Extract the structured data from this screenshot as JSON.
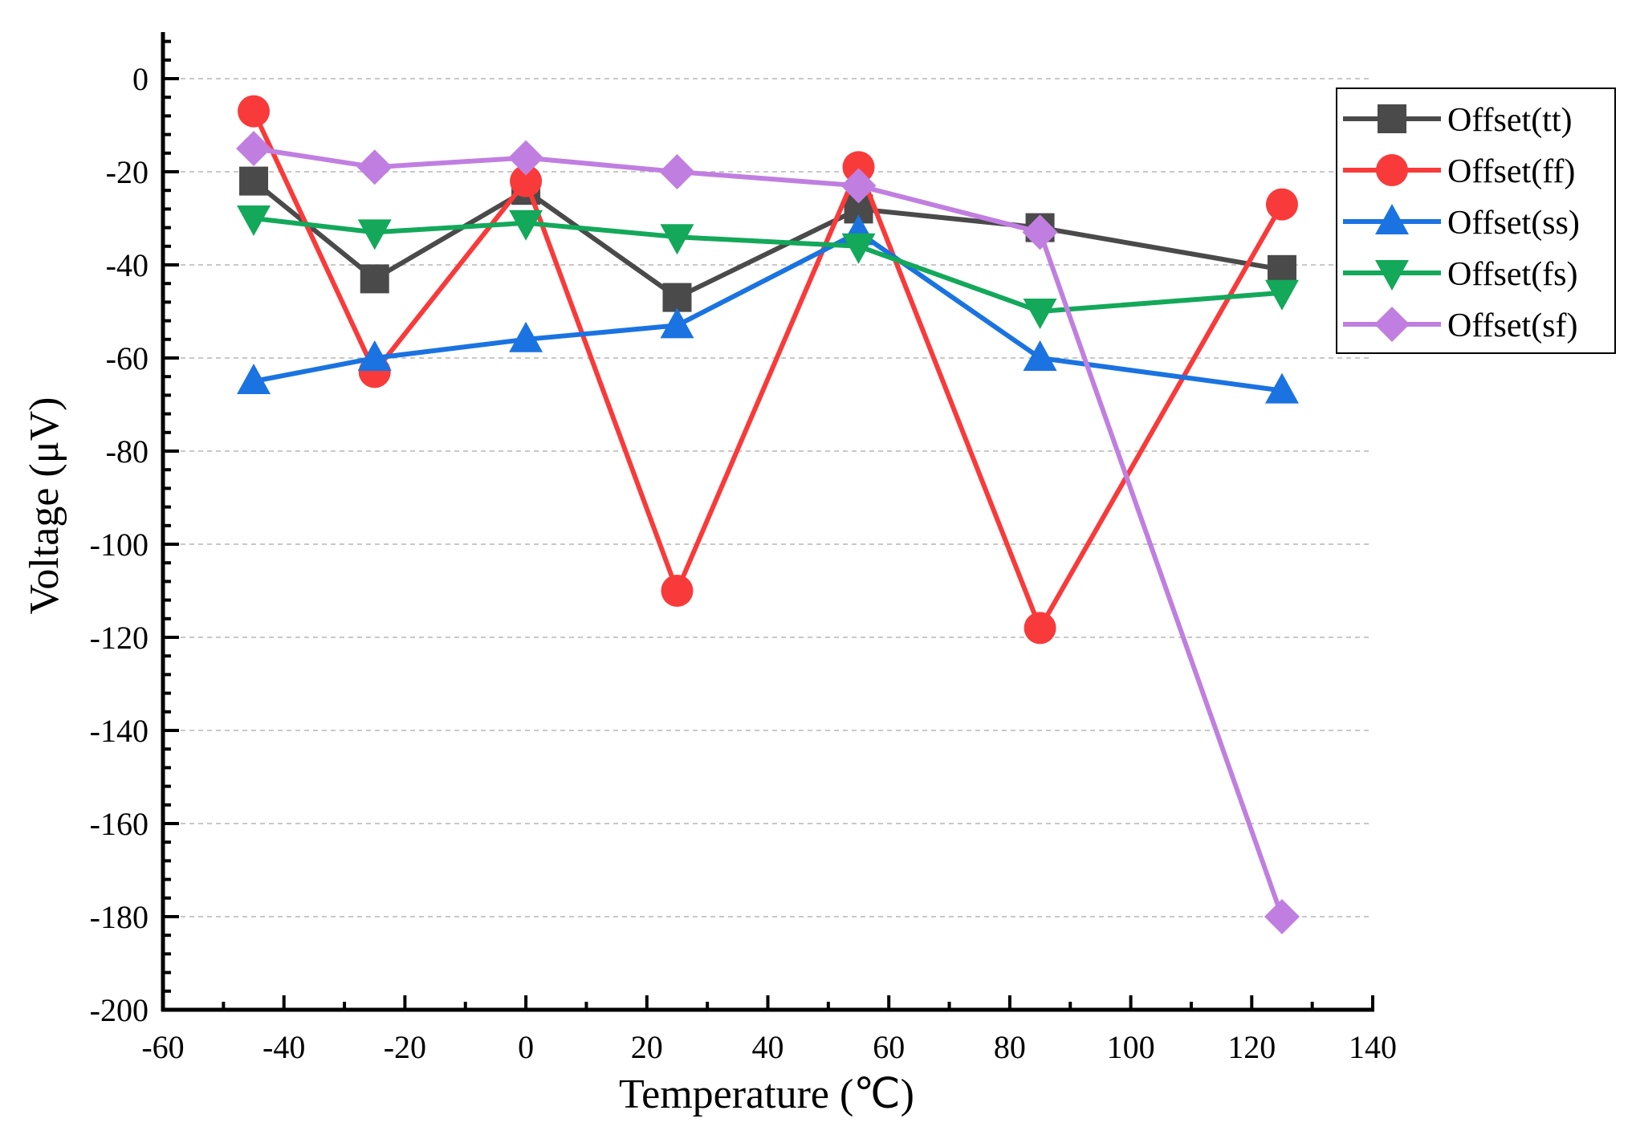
{
  "chart_data": {
    "type": "line",
    "title": "",
    "xlabel": "Temperature (℃)",
    "ylabel": "Voltage (μV)",
    "xlim": [
      -60,
      140
    ],
    "ylim": [
      -200,
      10
    ],
    "xticks": [
      -60,
      -40,
      -20,
      0,
      20,
      40,
      60,
      80,
      100,
      120,
      140
    ],
    "yticks": [
      0,
      -20,
      -40,
      -60,
      -80,
      -100,
      -120,
      -140,
      -160,
      -180,
      -200
    ],
    "grid": "horizontal dashed",
    "legend_position": "top-right",
    "x": [
      -45,
      -25,
      0,
      25,
      55,
      85,
      125
    ],
    "series": [
      {
        "name": "Offset(tt)",
        "color": "#4a4a4a",
        "marker": "square",
        "values": [
          -22,
          -43,
          -24,
          -47,
          -28,
          -32,
          -41
        ]
      },
      {
        "name": "Offset(ff)",
        "color": "#f93a3a",
        "marker": "circle",
        "values": [
          -7,
          -63,
          -22,
          -110,
          -19,
          -118,
          -27
        ]
      },
      {
        "name": "Offset(ss)",
        "color": "#1a73e0",
        "marker": "triangle-up",
        "values": [
          -65,
          -60,
          -56,
          -53,
          -33,
          -60,
          -67
        ]
      },
      {
        "name": "Offset(fs)",
        "color": "#13a85a",
        "marker": "triangle-down",
        "values": [
          -30,
          -33,
          -31,
          -34,
          -36,
          -50,
          -46
        ]
      },
      {
        "name": "Offset(sf)",
        "color": "#c07fe0",
        "marker": "diamond",
        "values": [
          -15,
          -19,
          -17,
          -20,
          -23,
          -33,
          -180
        ]
      }
    ]
  }
}
